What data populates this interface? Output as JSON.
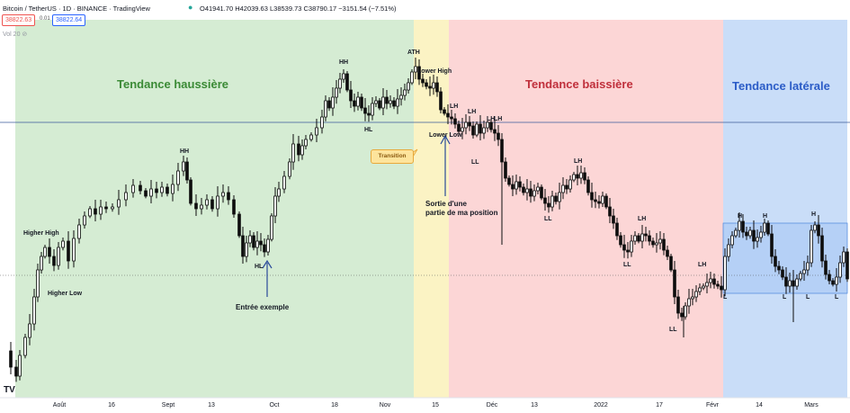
{
  "header": {
    "symbol": "Bitcoin / TetherUS · 1D · BINANCE · TradingView",
    "ohlc": "O41941.70 H42039.63 L38539.73 C38790.17 −3151.54 (−7.51%)",
    "price_box_1": "38822.63",
    "spread": "0.01",
    "price_box_2": "38822.64",
    "volume_label": "Vol 20"
  },
  "colors": {
    "bullish_zone": "#d5ecd3",
    "transition_zone": "#fbf3c4",
    "bearish_zone": "#fcd6d6",
    "lateral_zone": "#c9ddf8",
    "candle": "#0d0d0d",
    "bullish_text": "#3a8a35",
    "bearish_text": "#c0303c",
    "lateral_text": "#2b5cc7",
    "hline": "#3a5a9a",
    "arrow": "#2a4a9a"
  },
  "zones": {
    "bullish": "Tendance haussière",
    "bearish": "Tendance baissière",
    "lateral": "Tendance latérale",
    "transition": "Transition"
  },
  "annotations": {
    "ath": "ATH",
    "hh": "HH",
    "hl": "HL",
    "lh": "LH",
    "ll": "LL",
    "h": "H",
    "l": "L",
    "higher_high": "Higher High",
    "higher_low": "Higher Low",
    "lower_high": "Lower High",
    "lower_low": "Lower Low",
    "entry": "Entrée exemple",
    "exit_line1": "Sortie d'une",
    "exit_line2": "partie de ma position"
  },
  "x_axis": {
    "ticks": [
      "Août",
      "16",
      "Sept",
      "13",
      "Oct",
      "18",
      "Nov",
      "15",
      "Déc",
      "13",
      "2022",
      "17",
      "Févr",
      "14",
      "Mars"
    ]
  },
  "chart_data": {
    "type": "candlestick",
    "title": "Bitcoin / TetherUS · 1D · BINANCE",
    "x_ticks": [
      "Août",
      "16",
      "Sept",
      "13",
      "Oct",
      "18",
      "Nov",
      "15",
      "Déc",
      "13",
      "2022",
      "17",
      "Févr",
      "14",
      "Mars"
    ],
    "zones": [
      {
        "name": "Tendance haussière",
        "from": "2021-07-20",
        "to": "2021-11-08"
      },
      {
        "name": "Transition",
        "from": "2021-11-08",
        "to": "2021-11-19"
      },
      {
        "name": "Tendance baissière",
        "from": "2021-11-19",
        "to": "2022-02-04"
      },
      {
        "name": "Tendance latérale",
        "from": "2022-02-04",
        "to": "2022-03-08"
      }
    ],
    "key_points": [
      {
        "label": "ATH",
        "date": "2021-11-10",
        "approx_price": 69000
      },
      {
        "label": "HH",
        "date": "2021-09-07"
      },
      {
        "label": "HH",
        "date": "2021-10-20"
      },
      {
        "label": "HL",
        "date": "2021-09-29"
      },
      {
        "label": "HL",
        "date": "2021-10-27"
      },
      {
        "label": "LL",
        "date": "2022-01-24"
      }
    ],
    "last_candle": {
      "open": 41941.7,
      "high": 42039.63,
      "low": 38539.73,
      "close": 38790.17,
      "change": -3151.54,
      "change_pct": -7.51
    }
  }
}
